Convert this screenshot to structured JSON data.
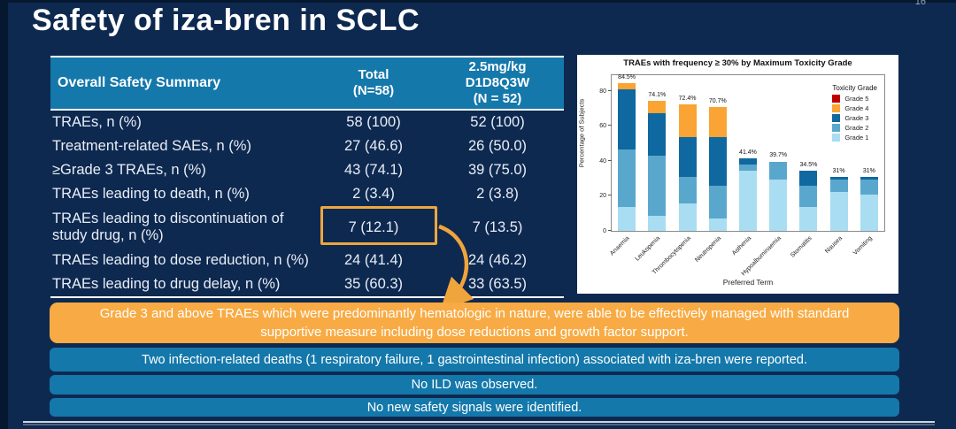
{
  "page_number": "16",
  "title": "Safety of iza-bren in SCLC",
  "table": {
    "header": {
      "col1": "Overall Safety Summary",
      "col2": "Total\n(N=58)",
      "col3": "2.5mg/kg\nD1D8Q3W\n(N = 52)"
    },
    "rows": [
      {
        "label": "TRAEs, n (%)",
        "total": "58 (100)",
        "cohort": "52 (100)"
      },
      {
        "label": "Treatment-related SAEs, n (%)",
        "total": "27 (46.6)",
        "cohort": "26 (50.0)"
      },
      {
        "label": "≥Grade 3 TRAEs, n (%)",
        "total": "43 (74.1)",
        "cohort": "39 (75.0)"
      },
      {
        "label": "TRAEs leading to death, n (%)",
        "total": "2 (3.4)",
        "cohort": "2 (3.8)"
      },
      {
        "label": "TRAEs leading to discontinuation of study drug, n (%)",
        "total": "7 (12.1)",
        "cohort": "7 (13.5)",
        "tall": true,
        "highlighted": true
      },
      {
        "label": "TRAEs leading to dose reduction, n (%)",
        "total": "24 (41.4)",
        "cohort": "24 (46.2)"
      },
      {
        "label": "TRAEs leading to drug delay, n (%)",
        "total": "35 (60.3)",
        "cohort": "33 (63.5)"
      }
    ]
  },
  "chart_data": {
    "type": "bar",
    "subtype": "stacked",
    "title": "TRAEs with frequency ≥ 30% by Maximum Toxicity Grade",
    "xlabel": "Preferred Term",
    "ylabel": "Percentage of Subjects",
    "ylim": [
      0,
      90
    ],
    "yticks": [
      0,
      20,
      40,
      60,
      80
    ],
    "grid": false,
    "legend_position": "upper right",
    "legend_title": "Toxicity Grade",
    "categories": [
      "Anaemia",
      "Leukopenia",
      "Thrombocytopenia",
      "Neutropenia",
      "Asthenia",
      "Hypoalbuminaemia",
      "Stomatitis",
      "Nausea",
      "Vomiting"
    ],
    "totals_labels": [
      "84.5%",
      "74.1%",
      "72.4%",
      "70.7%",
      "41.4%",
      "39.7%",
      "34.5%",
      "31%",
      "31%"
    ],
    "series": [
      {
        "name": "Grade 1",
        "color": "#a9ddf1",
        "values": [
          13.8,
          8.6,
          15.5,
          6.9,
          34.5,
          29.3,
          13.8,
          22.4,
          20.7
        ]
      },
      {
        "name": "Grade 2",
        "color": "#5aa7cd",
        "values": [
          32.8,
          34.5,
          15.5,
          19.0,
          3.4,
          10.4,
          12.1,
          6.9,
          8.6
        ]
      },
      {
        "name": "Grade 3",
        "color": "#0f689f",
        "values": [
          34.5,
          24.1,
          22.4,
          27.6,
          3.5,
          0,
          8.6,
          1.7,
          1.7
        ]
      },
      {
        "name": "Grade 4",
        "color": "#f9a434",
        "values": [
          3.4,
          6.9,
          19.0,
          17.2,
          0,
          0,
          0,
          0,
          0
        ]
      },
      {
        "name": "Grade 5",
        "color": "#c00000",
        "values": [
          0,
          0,
          0,
          0,
          0,
          0,
          0,
          0,
          0
        ]
      }
    ],
    "legend_order": [
      "Grade 5",
      "Grade 4",
      "Grade 3",
      "Grade 2",
      "Grade 1"
    ]
  },
  "callouts": {
    "highlight_note": "Grade 3 and above TRAEs which were predominantly hematologic in nature, were able to be effectively managed with standard supportive measure including dose reductions and growth factor support.",
    "notes": [
      "Two infection-related deaths (1 respiratory failure, 1 gastrointestinal infection) associated with iza-bren were reported.",
      "No ILD was observed.",
      "No new safety signals were identified."
    ]
  },
  "colors": {
    "background": "#0e2950",
    "edge": "#06182f",
    "band_blue": "#1478ab",
    "accent_orange": "#f8ab44",
    "arrow_orange": "#f0a43c",
    "white": "#ffffff"
  }
}
